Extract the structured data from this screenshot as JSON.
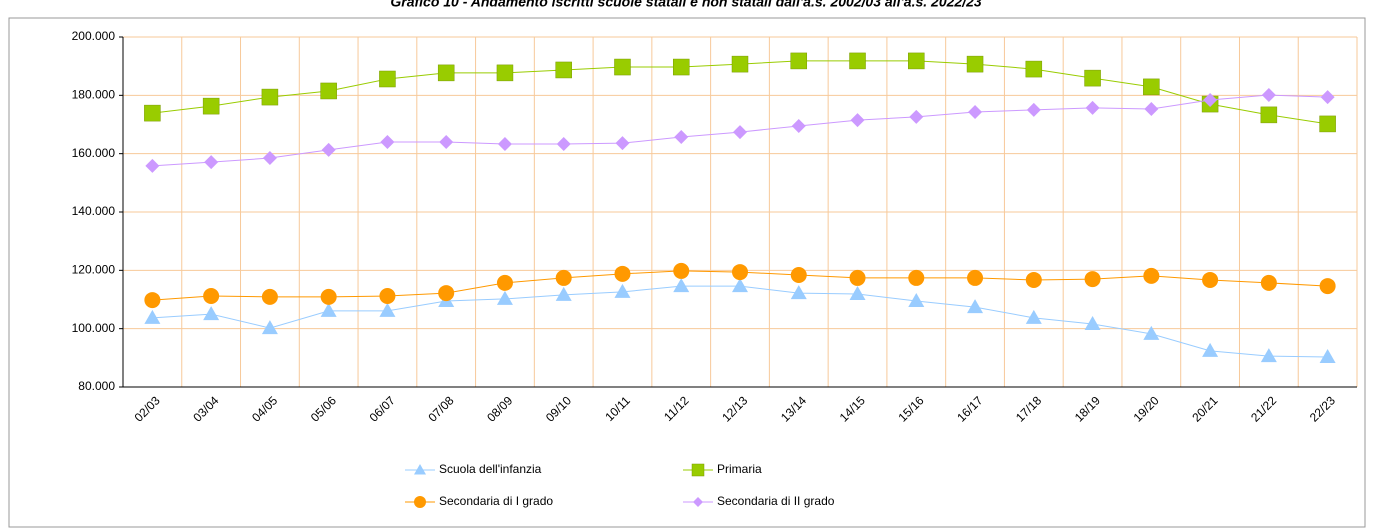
{
  "chart_data": {
    "type": "line",
    "title": "Grafico 10 - Andamento iscritti scuole statali e non statali dall'a.s. 2002/03 all'a.s. 2022/23",
    "categories": [
      "02/03",
      "03/04",
      "04/05",
      "05/06",
      "06/07",
      "07/08",
      "08/09",
      "09/10",
      "10/11",
      "11/12",
      "12/13",
      "13/14",
      "14/15",
      "15/16",
      "16/17",
      "17/18",
      "18/19",
      "19/20",
      "20/21",
      "21/22",
      "22/23"
    ],
    "series": [
      {
        "name": "Scuola dell'infanzia",
        "color": "#99ccff",
        "marker": "triangle",
        "values": [
          103700,
          105000,
          100200,
          106100,
          106100,
          109500,
          110200,
          111600,
          112600,
          114600,
          114600,
          112200,
          111900,
          109500,
          107400,
          103700,
          101600,
          98200,
          92400,
          90600,
          90300
        ]
      },
      {
        "name": "Primaria",
        "color": "#99cc00",
        "marker": "square",
        "values": [
          173900,
          176300,
          179400,
          181500,
          185600,
          187700,
          187700,
          188700,
          189700,
          189700,
          190700,
          191800,
          191800,
          191800,
          190700,
          189000,
          185900,
          182900,
          177000,
          173300,
          170200
        ]
      },
      {
        "name": "Secondaria di I grado",
        "color": "#ff9900",
        "marker": "circle",
        "values": [
          109800,
          111200,
          110900,
          110900,
          111200,
          112200,
          115700,
          117400,
          118800,
          119800,
          119400,
          118400,
          117400,
          117400,
          117400,
          116700,
          117000,
          118100,
          116700,
          115700,
          114600
        ]
      },
      {
        "name": "Secondaria di II grado",
        "color": "#cc99ff",
        "marker": "diamond",
        "values": [
          155800,
          157100,
          158500,
          161300,
          164000,
          164000,
          163300,
          163300,
          163600,
          165700,
          167400,
          169500,
          171500,
          172600,
          174300,
          175000,
          175700,
          175300,
          178400,
          180100,
          179400
        ]
      }
    ],
    "ylim": [
      80000,
      200000
    ],
    "yticks": [
      {
        "value": 80000,
        "label": "80.000"
      },
      {
        "value": 100000,
        "label": "100.000"
      },
      {
        "value": 120000,
        "label": "120.000"
      },
      {
        "value": 140000,
        "label": "140.000"
      },
      {
        "value": 160000,
        "label": "160.000"
      },
      {
        "value": 180000,
        "label": "180.000"
      },
      {
        "value": 200000,
        "label": "200.000"
      }
    ],
    "grid": true
  }
}
